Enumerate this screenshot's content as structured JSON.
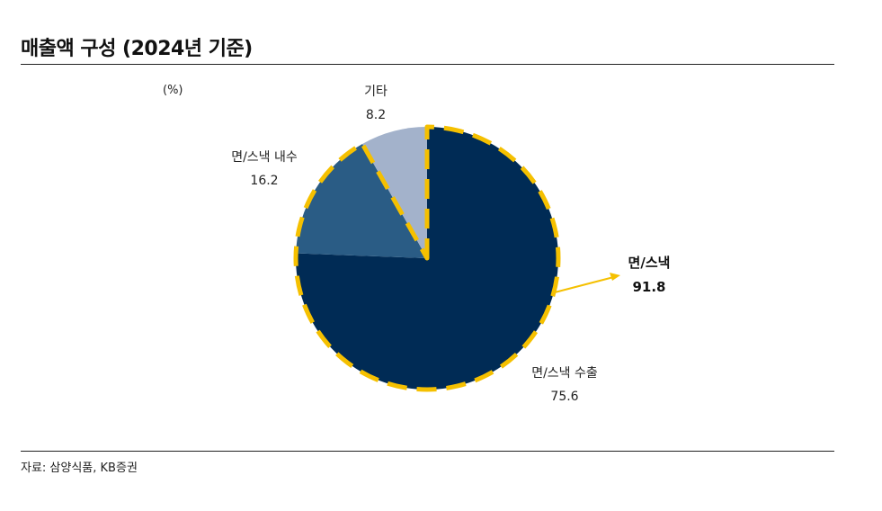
{
  "page": {
    "title": "매출액 구성 (2024년 기준)",
    "unit_label": "(%)",
    "source": "자료: 삼양식품, KB증권"
  },
  "chart_data": {
    "type": "pie",
    "title": "매출액 구성 (2024년 기준)",
    "unit": "(%)",
    "slices": [
      {
        "name": "면/스낵 수출",
        "value": 75.6,
        "value_label": "75.6",
        "color": "#002b55"
      },
      {
        "name": "면/스낵 내수",
        "value": 16.2,
        "value_label": "16.2",
        "color": "#2a5c85"
      },
      {
        "name": "기타",
        "value": 8.2,
        "value_label": "8.2",
        "color": "#a3b2cb"
      }
    ],
    "highlight": {
      "name": "면/스낵",
      "value": 91.8,
      "value_label": "91.8",
      "outline_color": "#f5c000",
      "arrow_color": "#f5c000"
    }
  }
}
